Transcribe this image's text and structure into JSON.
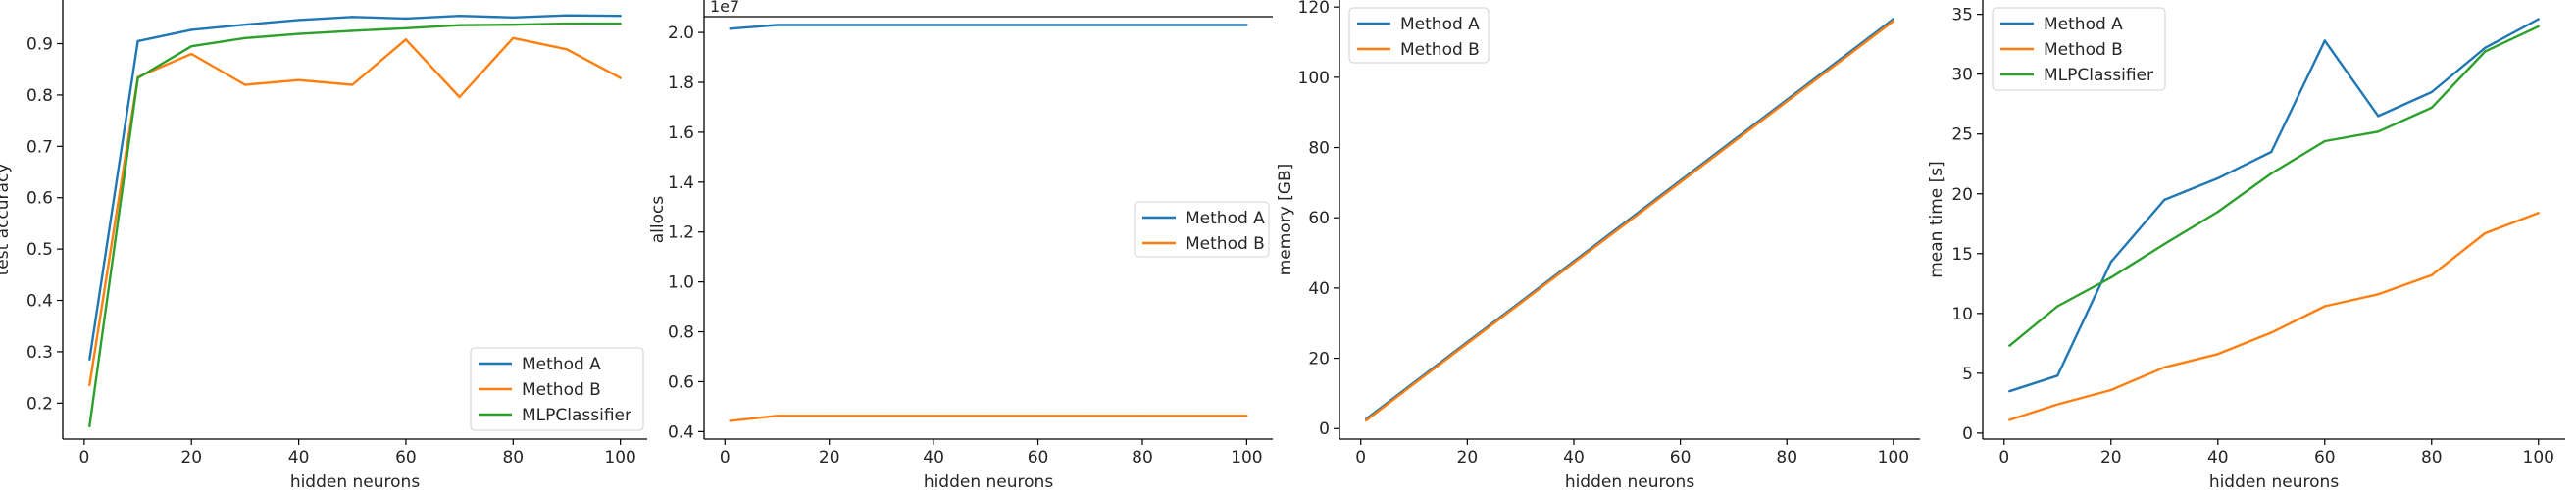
{
  "chart_data": [
    {
      "type": "line",
      "xlabel": "hidden neurons",
      "ylabel": "test accuracy",
      "xlim": [
        -4,
        105
      ],
      "ylim": [
        0.13,
        0.985
      ],
      "xticks": [
        0,
        20,
        40,
        60,
        80,
        100
      ],
      "xtick_labels": [
        "0",
        "20",
        "40",
        "60",
        "80",
        "100"
      ],
      "yticks": [
        0.2,
        0.3,
        0.4,
        0.5,
        0.6,
        0.7,
        0.8,
        0.9
      ],
      "ytick_labels": [
        "0.2",
        "0.3",
        "0.4",
        "0.5",
        "0.6",
        "0.7",
        "0.8",
        "0.9"
      ],
      "legend_position": "lower-right",
      "x": [
        1,
        10,
        20,
        30,
        40,
        50,
        60,
        70,
        80,
        90,
        100
      ],
      "series": [
        {
          "name": "Method A",
          "color": "#1f77b4",
          "values": [
            0.285,
            0.905,
            0.927,
            0.937,
            0.946,
            0.952,
            0.949,
            0.954,
            0.951,
            0.955,
            0.954
          ]
        },
        {
          "name": "Method B",
          "color": "#ff7f0e",
          "values": [
            0.235,
            0.835,
            0.88,
            0.82,
            0.829,
            0.82,
            0.908,
            0.796,
            0.911,
            0.889,
            0.833
          ]
        },
        {
          "name": "MLPClassifier",
          "color": "#2ca02c",
          "values": [
            0.155,
            0.833,
            0.895,
            0.911,
            0.919,
            0.925,
            0.93,
            0.936,
            0.937,
            0.939,
            0.939
          ]
        }
      ]
    },
    {
      "type": "line",
      "xlabel": "hidden neurons",
      "ylabel": "allocs",
      "offset_text": "1e7",
      "xlim": [
        -4,
        105
      ],
      "ylim": [
        0.37,
        2.13
      ],
      "xticks": [
        0,
        20,
        40,
        60,
        80,
        100
      ],
      "xtick_labels": [
        "0",
        "20",
        "40",
        "60",
        "80",
        "100"
      ],
      "yticks": [
        0.4,
        0.6,
        0.8,
        1.0,
        1.2,
        1.4,
        1.6,
        1.8,
        2.0
      ],
      "ytick_labels": [
        "0.4",
        "0.6",
        "0.8",
        "1.0",
        "1.2",
        "1.4",
        "1.6",
        "1.8",
        "2.0"
      ],
      "legend_position": "center-right",
      "x": [
        1,
        10,
        20,
        30,
        40,
        50,
        60,
        70,
        80,
        90,
        100
      ],
      "series": [
        {
          "name": "Method A",
          "color": "#1f77b4",
          "values": [
            2.015,
            2.03,
            2.03,
            2.03,
            2.03,
            2.03,
            2.03,
            2.03,
            2.03,
            2.03,
            2.03
          ]
        },
        {
          "name": "Method B",
          "color": "#ff7f0e",
          "values": [
            0.443,
            0.463,
            0.463,
            0.463,
            0.463,
            0.463,
            0.463,
            0.463,
            0.463,
            0.463,
            0.463
          ]
        }
      ]
    },
    {
      "type": "line",
      "xlabel": "hidden neurons",
      "ylabel": "memory [GB]",
      "xlim": [
        -4,
        105
      ],
      "ylim": [
        -3,
        122
      ],
      "xticks": [
        0,
        20,
        40,
        60,
        80,
        100
      ],
      "xtick_labels": [
        "0",
        "20",
        "40",
        "60",
        "80",
        "100"
      ],
      "yticks": [
        0,
        20,
        40,
        60,
        80,
        100,
        120
      ],
      "ytick_labels": [
        "0",
        "20",
        "40",
        "60",
        "80",
        "100",
        "120"
      ],
      "legend_position": "top-left",
      "x": [
        1,
        10,
        20,
        30,
        40,
        50,
        60,
        70,
        80,
        90,
        100
      ],
      "series": [
        {
          "name": "Method A",
          "color": "#1f77b4",
          "values": [
            2.7,
            13.1,
            24.6,
            36.1,
            47.6,
            59.1,
            70.6,
            82.1,
            93.6,
            105.1,
            116.6
          ]
        },
        {
          "name": "Method B",
          "color": "#ff7f0e",
          "values": [
            2.3,
            12.7,
            24.2,
            35.7,
            47.2,
            58.6,
            70.1,
            81.6,
            93.1,
            104.5,
            116.0
          ]
        }
      ]
    },
    {
      "type": "line",
      "xlabel": "hidden neurons",
      "ylabel": "mean time [s]",
      "xlim": [
        -4,
        105
      ],
      "ylim": [
        -0.5,
        36.2
      ],
      "xticks": [
        0,
        20,
        40,
        60,
        80,
        100
      ],
      "xtick_labels": [
        "0",
        "20",
        "40",
        "60",
        "80",
        "100"
      ],
      "yticks": [
        0,
        5,
        10,
        15,
        20,
        25,
        30,
        35
      ],
      "ytick_labels": [
        "0",
        "5",
        "10",
        "15",
        "20",
        "25",
        "30",
        "35"
      ],
      "legend_position": "top-left",
      "x": [
        1,
        10,
        20,
        30,
        40,
        50,
        60,
        70,
        80,
        90,
        100
      ],
      "series": [
        {
          "name": "Method A",
          "color": "#1f77b4",
          "values": [
            3.5,
            4.8,
            14.3,
            19.5,
            21.3,
            23.5,
            32.8,
            26.5,
            28.5,
            32.2,
            34.6
          ]
        },
        {
          "name": "Method B",
          "color": "#ff7f0e",
          "values": [
            1.1,
            2.4,
            3.6,
            5.5,
            6.6,
            8.4,
            10.6,
            11.6,
            13.2,
            16.7,
            18.4
          ]
        },
        {
          "name": "MLPClassifier",
          "color": "#2ca02c",
          "values": [
            7.3,
            10.6,
            13.0,
            15.8,
            18.5,
            21.7,
            24.4,
            25.2,
            27.2,
            31.9,
            34.0
          ]
        }
      ]
    }
  ]
}
